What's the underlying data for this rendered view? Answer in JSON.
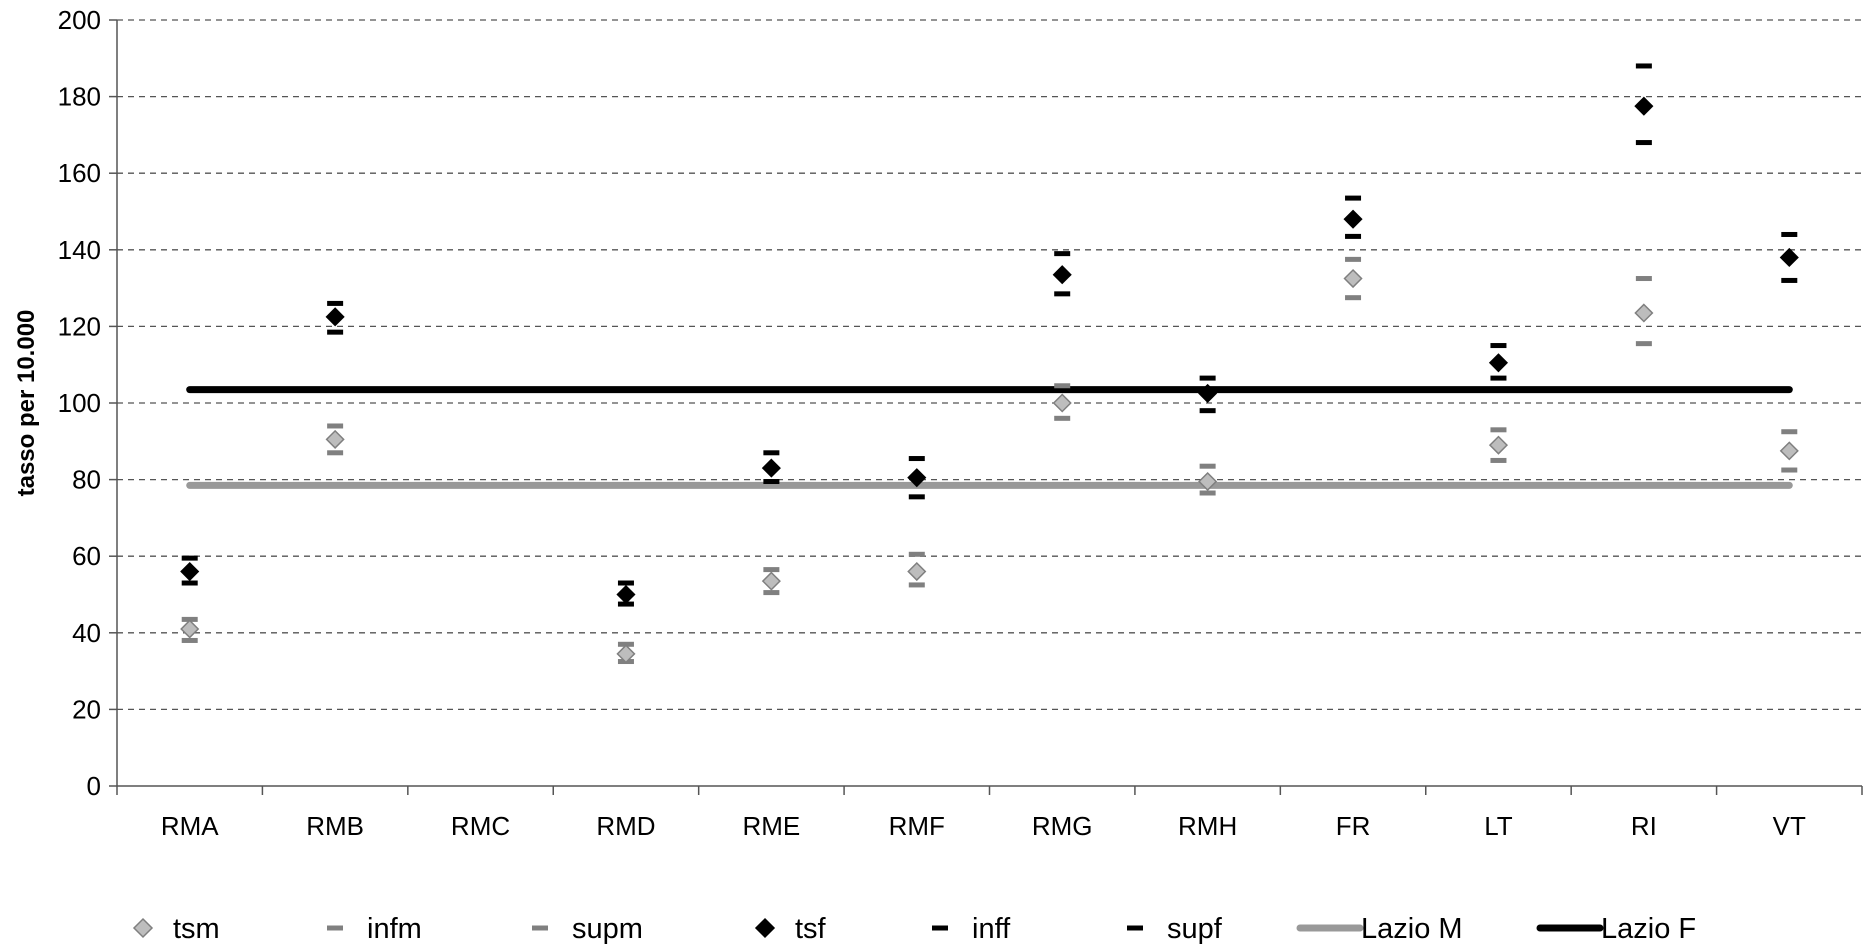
{
  "chart_data": {
    "type": "scatter",
    "title": "",
    "xlabel": "",
    "ylabel": "tasso per 10.000",
    "ylim": [
      0,
      200
    ],
    "yticks": [
      0,
      20,
      40,
      60,
      80,
      100,
      120,
      140,
      160,
      180,
      200
    ],
    "grid": true,
    "legend_position": "bottom",
    "categories": [
      "RMA",
      "RMB",
      "RMC",
      "RMD",
      "RME",
      "RMF",
      "RMG",
      "RMH",
      "FR",
      "LT",
      "RI",
      "VT"
    ],
    "series": [
      {
        "name": "tsm",
        "marker": "diamond",
        "color": "#bdbdbd",
        "edge": "#7f7f7f",
        "values": [
          41,
          90.5,
          null,
          34.5,
          53.5,
          56,
          100,
          79.5,
          132.5,
          89,
          123.5,
          87.5
        ]
      },
      {
        "name": "infm",
        "marker": "dash",
        "color": "#808080",
        "values": [
          38,
          87,
          null,
          32.5,
          50.5,
          52.5,
          96,
          76.5,
          127.5,
          85,
          115.5,
          82.5
        ]
      },
      {
        "name": "supm",
        "marker": "dash",
        "color": "#808080",
        "values": [
          43.5,
          94,
          null,
          37,
          56.5,
          60.5,
          104.5,
          83.5,
          137.5,
          93,
          132.5,
          92.5
        ]
      },
      {
        "name": "tsf",
        "marker": "diamond",
        "color": "#000000",
        "edge": "#000000",
        "values": [
          56,
          122.5,
          null,
          50,
          83,
          80.5,
          133.5,
          102.5,
          148,
          110.5,
          177.5,
          138
        ]
      },
      {
        "name": "inff",
        "marker": "dash",
        "color": "#000000",
        "values": [
          53,
          118.5,
          null,
          47.5,
          79.5,
          75.5,
          128.5,
          98,
          143.5,
          106.5,
          168,
          132
        ]
      },
      {
        "name": "supf",
        "marker": "dash",
        "color": "#000000",
        "values": [
          59.5,
          126,
          null,
          53,
          87,
          85.5,
          139,
          106.5,
          153.5,
          115,
          188,
          144
        ]
      },
      {
        "name": "Lazio M",
        "marker": "line",
        "color": "#999999",
        "value": 78.5
      },
      {
        "name": "Lazio F",
        "marker": "line",
        "color": "#000000",
        "value": 103.5
      }
    ]
  }
}
